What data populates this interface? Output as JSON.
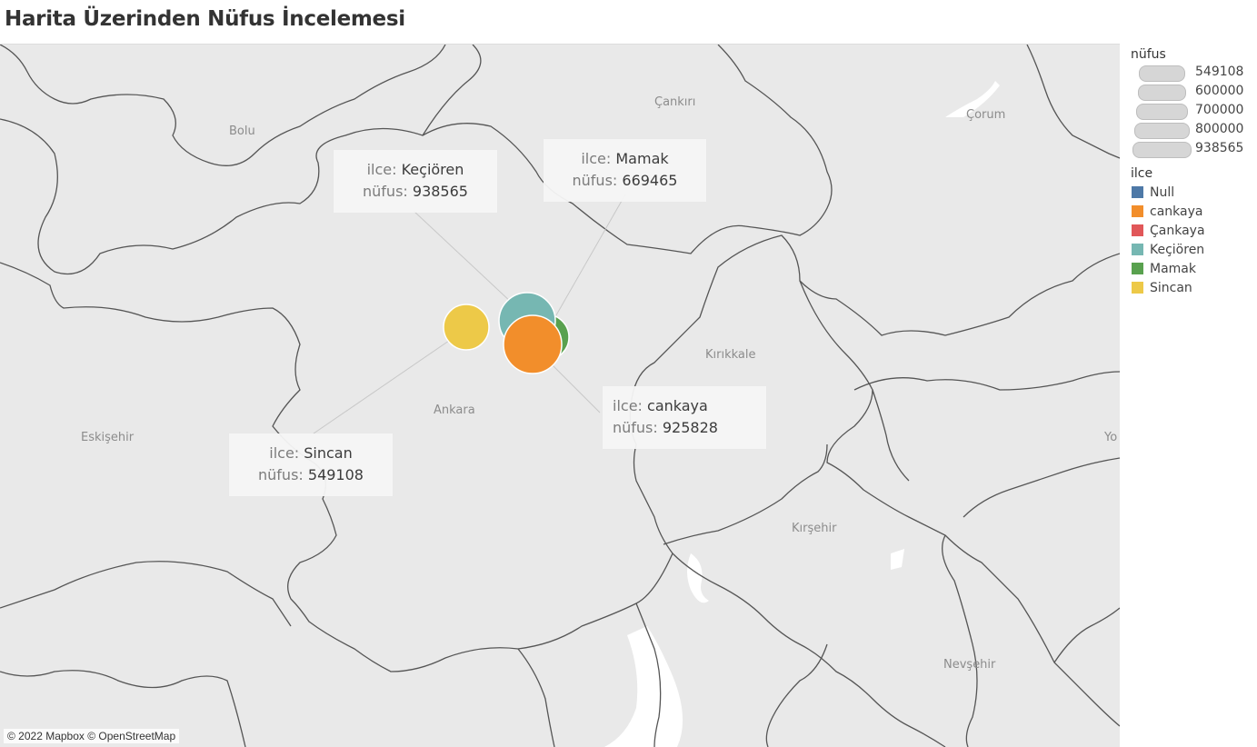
{
  "title": "Harita Üzerinden Nüfus İncelemesi",
  "map": {
    "places": [
      {
        "id": "cankiri",
        "name": "Çankırı"
      },
      {
        "id": "corum",
        "name": "Çorum"
      },
      {
        "id": "bolu",
        "name": "Bolu"
      },
      {
        "id": "kirikkale",
        "name": "Kırıkkale"
      },
      {
        "id": "ankara",
        "name": "Ankara"
      },
      {
        "id": "eskisehir",
        "name": "Eskişehir"
      },
      {
        "id": "kirsehir",
        "name": "Kırşehir"
      },
      {
        "id": "nevsehir",
        "name": "Nevşehir"
      },
      {
        "id": "yo",
        "name": "Yo"
      }
    ],
    "attribution": "© 2022 Mapbox © OpenStreetMap"
  },
  "tooltips": [
    {
      "id": "kecioren",
      "ilce_key": "ilce:",
      "ilce": "Keçiören",
      "nufus_key": "nüfus:",
      "nufus": "938565"
    },
    {
      "id": "mamak",
      "ilce_key": "ilce:",
      "ilce": "Mamak",
      "nufus_key": "nüfus:",
      "nufus": "669465"
    },
    {
      "id": "cankaya",
      "ilce_key": "ilce:",
      "ilce": "cankaya",
      "nufus_key": "nüfus:",
      "nufus": "925828"
    },
    {
      "id": "sincan",
      "ilce_key": "ilce:",
      "ilce": "Sincan",
      "nufus_key": "nüfus:",
      "nufus": "549108"
    }
  ],
  "legend": {
    "size_title": "nüfus",
    "size_items": [
      "549108",
      "600000",
      "700000",
      "800000",
      "938565"
    ],
    "color_title": "ilce",
    "color_items": [
      {
        "name": "Null",
        "color": "#4e79a7"
      },
      {
        "name": "cankaya",
        "color": "#f28e2b"
      },
      {
        "name": "Çankaya",
        "color": "#e15759"
      },
      {
        "name": "Keçiören",
        "color": "#76b7b2"
      },
      {
        "name": "Mamak",
        "color": "#59a14f"
      },
      {
        "name": "Sincan",
        "color": "#edc948"
      }
    ]
  },
  "marks": [
    {
      "ilce": "Mamak",
      "nufus": 669465,
      "color": "#59a14f"
    },
    {
      "ilce": "Keçiören",
      "nufus": 938565,
      "color": "#76b7b2"
    },
    {
      "ilce": "Sincan",
      "nufus": 549108,
      "color": "#edc948"
    },
    {
      "ilce": "cankaya",
      "nufus": 925828,
      "color": "#f28e2b"
    }
  ]
}
